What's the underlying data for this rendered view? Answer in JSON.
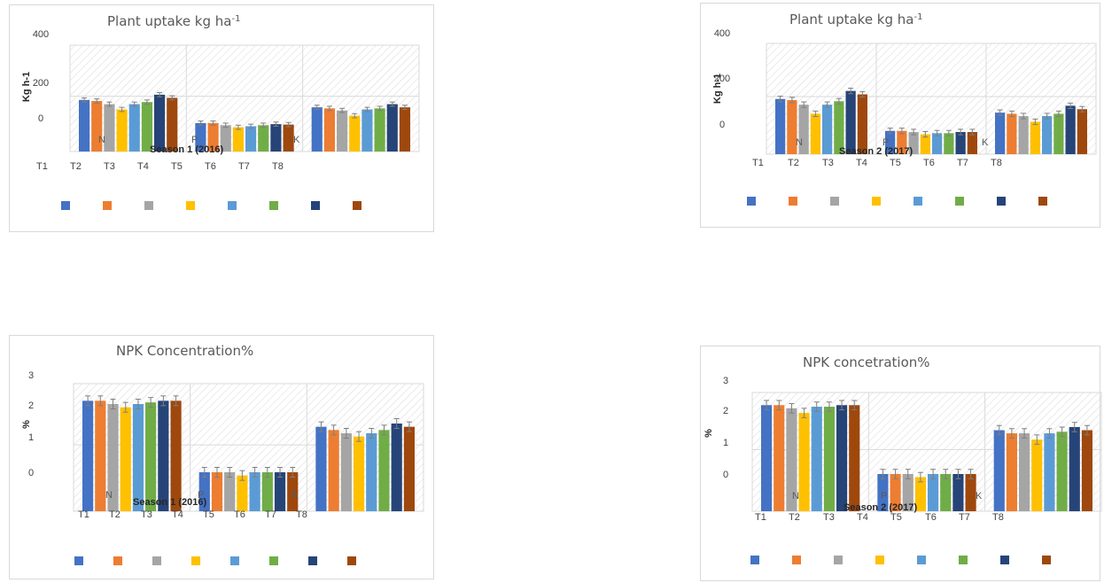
{
  "colors": [
    "#4472C4",
    "#ED7D31",
    "#A5A5A5",
    "#FFC000",
    "#5B9BD5",
    "#70AD47",
    "#264478",
    "#9E480E"
  ],
  "chart_data": [
    {
      "type": "bar",
      "title": "Plant uptake kg ha",
      "title_sup": "-1",
      "ylabel": "Kg h-1",
      "season_label": "Season 1 (2016)",
      "categories": [
        "N",
        "P",
        "K"
      ],
      "treatment_labels": [
        "T1",
        "T2",
        "T3",
        "T4",
        "T5",
        "T6",
        "T7",
        "T8"
      ],
      "yticks": [
        "400",
        "200",
        "0"
      ],
      "ylim": [
        -100,
        400
      ],
      "series": [
        {
          "values": [
            85,
            -25,
            50
          ]
        },
        {
          "values": [
            80,
            -25,
            45
          ]
        },
        {
          "values": [
            65,
            -35,
            35
          ]
        },
        {
          "values": [
            40,
            -45,
            10
          ]
        },
        {
          "values": [
            65,
            -40,
            40
          ]
        },
        {
          "values": [
            75,
            -35,
            45
          ]
        },
        {
          "values": [
            110,
            -30,
            65
          ]
        },
        {
          "values": [
            95,
            -32,
            50
          ]
        }
      ],
      "errors": [
        10,
        10,
        10,
        10,
        10,
        10,
        10,
        10
      ]
    },
    {
      "type": "bar",
      "title": "Plant uptake kg ha",
      "title_sup": "-1",
      "ylabel": "Kg h-1",
      "season_label": "Season 2 (2017)",
      "categories": [
        "N",
        "P",
        "K"
      ],
      "treatment_labels": [
        "T1",
        "T2",
        "T3",
        "T4",
        "T5",
        "T6",
        "T7",
        "T8"
      ],
      "yticks": [
        "400",
        "200",
        "0"
      ],
      "ylim": [
        -100,
        400
      ],
      "series": [
        {
          "values": [
            110,
            -30,
            50
          ]
        },
        {
          "values": [
            105,
            -30,
            45
          ]
        },
        {
          "values": [
            85,
            -35,
            35
          ]
        },
        {
          "values": [
            45,
            -45,
            10
          ]
        },
        {
          "values": [
            85,
            -40,
            35
          ]
        },
        {
          "values": [
            100,
            -40,
            45
          ]
        },
        {
          "values": [
            145,
            -35,
            80
          ]
        },
        {
          "values": [
            130,
            -35,
            65
          ]
        }
      ],
      "errors": [
        12,
        12,
        12,
        12,
        12,
        12,
        12,
        12
      ]
    },
    {
      "type": "bar",
      "title": "NPK Concentration%",
      "ylabel": "%",
      "season_label": "Season 1 (2016)",
      "categories": [
        "N",
        "P",
        "K"
      ],
      "treatment_labels": [
        "T1",
        "T2",
        "T3",
        "T4",
        "T5",
        "T6",
        "T7",
        "T8"
      ],
      "yticks": [
        "3",
        "2",
        "1",
        "0"
      ],
      "ylim": [
        -1,
        3
      ],
      "series": [
        {
          "values": [
            2.2,
            0.0,
            1.4
          ]
        },
        {
          "values": [
            2.2,
            0.0,
            1.3
          ]
        },
        {
          "values": [
            2.1,
            0.0,
            1.2
          ]
        },
        {
          "values": [
            2.0,
            -0.1,
            1.1
          ]
        },
        {
          "values": [
            2.1,
            0.0,
            1.2
          ]
        },
        {
          "values": [
            2.15,
            0.0,
            1.3
          ]
        },
        {
          "values": [
            2.2,
            0.0,
            1.5
          ]
        },
        {
          "values": [
            2.2,
            0.0,
            1.4
          ]
        }
      ],
      "errors": [
        0.15,
        0.15,
        0.15,
        0.15,
        0.15,
        0.15,
        0.15,
        0.15
      ]
    },
    {
      "type": "bar",
      "title": "NPK concetration%",
      "ylabel": "%",
      "season_label": "Season 2 (2017)",
      "categories": [
        "N",
        "P",
        "K"
      ],
      "treatment_labels": [
        "T1",
        "T2",
        "T3",
        "T4",
        "T5",
        "T6",
        "T7",
        "T8"
      ],
      "yticks": [
        "3",
        "2",
        "1",
        "0"
      ],
      "ylim": [
        -1,
        3
      ],
      "series": [
        {
          "values": [
            2.2,
            0.0,
            1.4
          ]
        },
        {
          "values": [
            2.2,
            0.0,
            1.3
          ]
        },
        {
          "values": [
            2.1,
            0.0,
            1.3
          ]
        },
        {
          "values": [
            1.95,
            -0.1,
            1.1
          ]
        },
        {
          "values": [
            2.15,
            0.0,
            1.3
          ]
        },
        {
          "values": [
            2.15,
            0.0,
            1.35
          ]
        },
        {
          "values": [
            2.2,
            0.0,
            1.5
          ]
        },
        {
          "values": [
            2.2,
            0.0,
            1.4
          ]
        }
      ],
      "errors": [
        0.15,
        0.15,
        0.15,
        0.15,
        0.15,
        0.15,
        0.15,
        0.15
      ]
    }
  ]
}
